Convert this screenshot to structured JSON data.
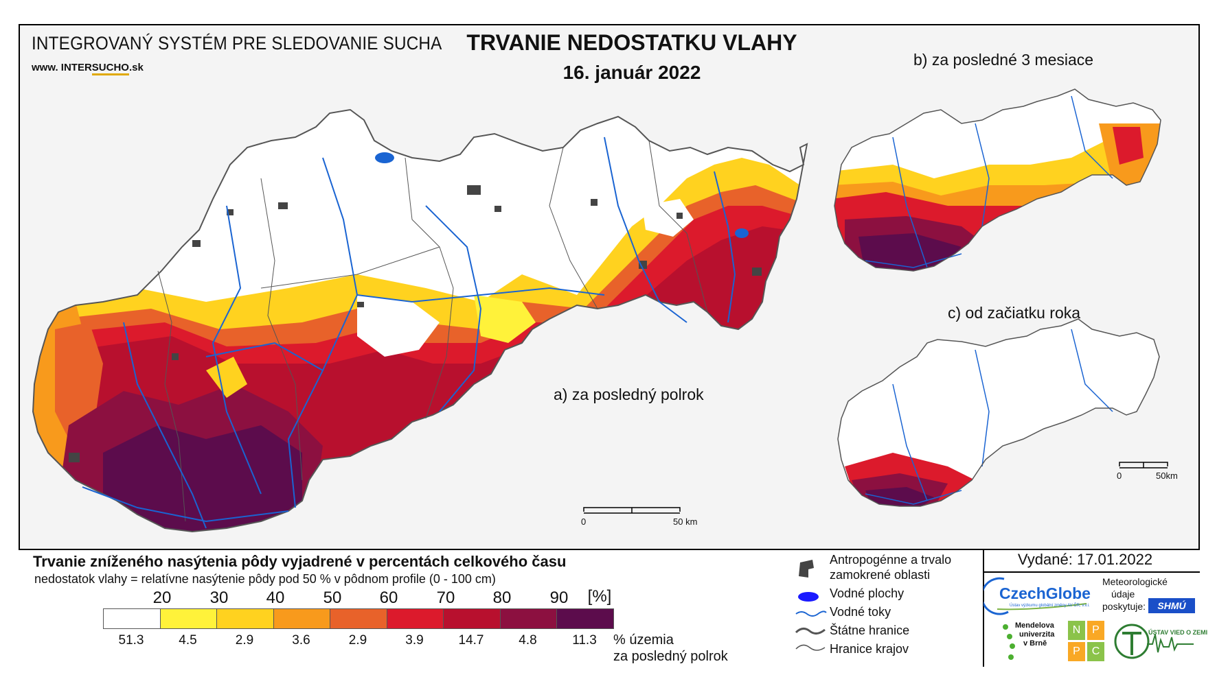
{
  "header": {
    "system_title": "INTEGROVANÝ SYSTÉM PRE SLEDOVANIE SUCHA",
    "url_prefix": "www. INTER",
    "url_highlight": "SUCHO",
    "url_suffix": ".sk",
    "main_title": "TRVANIE NEDOSTATKU VLAHY",
    "date": "16. január 2022"
  },
  "maps": {
    "a_label": "a) za posledný polrok",
    "b_label": "b) za posledné 3 mesiace",
    "c_label": "c) od začiatku roka",
    "scale_a": {
      "zero": "0",
      "end": "50 km"
    },
    "scale_c": {
      "zero": "0",
      "end": "50km"
    }
  },
  "legend": {
    "title": "Trvanie zníženého nasýtenia pôdy vyjadrené v percentách celkového času",
    "subtitle": "nedostatok vlahy = relatívne nasýtenie pôdy pod 50 % v pôdnom profile (0 - 100 cm)",
    "ticks": [
      "20",
      "30",
      "40",
      "50",
      "60",
      "70",
      "80",
      "90",
      "[%]"
    ],
    "classes": [
      {
        "color": "#ffffff",
        "value": "51.3"
      },
      {
        "color": "#fff23a",
        "value": "4.5"
      },
      {
        "color": "#ffd21f",
        "value": "2.9"
      },
      {
        "color": "#f89a1c",
        "value": "3.6"
      },
      {
        "color": "#e8622a",
        "value": "2.9"
      },
      {
        "color": "#dc1a2c",
        "value": "3.9"
      },
      {
        "color": "#b8102e",
        "value": "14.7"
      },
      {
        "color": "#8c1040",
        "value": "4.8"
      },
      {
        "color": "#5c0c4c",
        "value": "11.3"
      }
    ],
    "pct_label_1": "% územia",
    "pct_label_2": "za posledný polrok",
    "symbols": {
      "anthropogenic_1": "Antropogénne a trvalo",
      "anthropogenic_2": "zamokrené oblasti",
      "water_bodies": "Vodné plochy",
      "rivers": "Vodné toky",
      "state_border": "Štátne hranice",
      "region_border": "Hranice krajov"
    },
    "issued": "Vydané: 17.01.2022",
    "provider_1": "Meteorologické",
    "provider_2": "údaje",
    "provider_3": "poskytuje:",
    "logos": {
      "czechglobe": "CzechGlobe",
      "czechglobe_sub": "Ústav výzkumu globální změny AV ČR, v.v.i.",
      "mendel_1": "Mendelova",
      "mendel_2": "univerzita",
      "mendel_3": "v Brně",
      "nppc": [
        "N",
        "P",
        "P",
        "C"
      ],
      "shmu": "SHMÚ",
      "uvz": "ÚSTAV VIED O ZEMI"
    }
  },
  "colors": {
    "river": "#1a64d2",
    "anthropogenic": "#444444",
    "border": "#555555"
  }
}
